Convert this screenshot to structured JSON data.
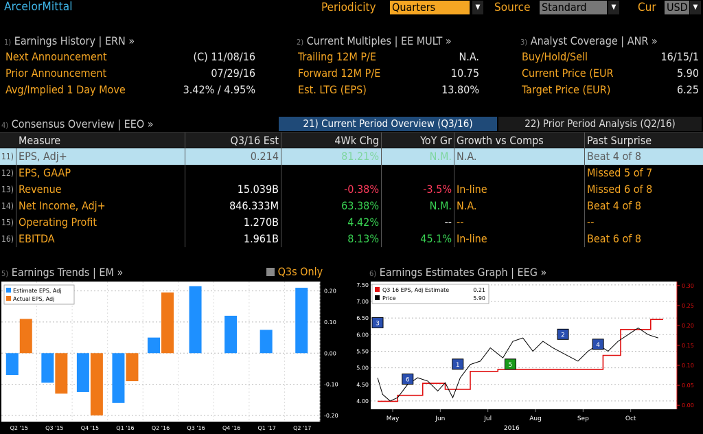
{
  "header": {
    "logo": "ArcelorMittal",
    "periodicity_label": "Periodicity",
    "periodicity_value": "Quarters",
    "source_label": "Source",
    "source_value": "Standard",
    "cur_label": "Cur",
    "cur_value": "USD"
  },
  "sections": {
    "ern": {
      "num": "1)",
      "title": "Earnings History | ERN »",
      "rows": [
        {
          "label": "Next Announcement",
          "value": "(C)  11/08/16"
        },
        {
          "label": "Prior Announcement",
          "value": "07/29/16"
        },
        {
          "label": "Avg/Implied 1 Day Move",
          "value": "3.42% / 4.95%"
        }
      ]
    },
    "mult": {
      "num": "2)",
      "title": "Current Multiples | EE MULT »",
      "rows": [
        {
          "label": "Trailing 12M P/E",
          "value": "N.A."
        },
        {
          "label": "Forward 12M P/E",
          "value": "10.75"
        },
        {
          "label": "Est. LTG (EPS)",
          "value": "13.80%"
        }
      ]
    },
    "anr": {
      "num": "3)",
      "title": "Analyst Coverage | ANR »",
      "rows": [
        {
          "label": "Buy/Hold/Sell",
          "value": "16/15/1"
        },
        {
          "label": "Current Price (EUR",
          "value": "5.90"
        },
        {
          "label": "Target Price (EUR)",
          "value": "6.25"
        }
      ]
    }
  },
  "consensus": {
    "num": "4)",
    "title": "Consensus Overview | EEO »",
    "tab_current": "21) Current Period Overview (Q3/16)",
    "tab_prior": "22) Prior Period Analysis (Q2/16)",
    "columns": [
      "Measure",
      "Q3/16 Est",
      "4Wk Chg",
      "YoY Gr",
      "Growth vs Comps",
      "Past Surprise"
    ],
    "rows": [
      {
        "num": "11)",
        "measure": "EPS, Adj+",
        "est": "0.214",
        "chg": "81.21%",
        "yoy": "N.M.",
        "comps": "N.A.",
        "surprise": "Beat 4 of 8",
        "chg_sign": "pos",
        "yoy_sign": "pos"
      },
      {
        "num": "12)",
        "measure": "EPS, GAAP",
        "est": "",
        "chg": "",
        "yoy": "",
        "comps": "",
        "surprise": "Missed 5 of 7",
        "chg_sign": "pos",
        "yoy_sign": "pos"
      },
      {
        "num": "13)",
        "measure": "Revenue",
        "est": "15.039B",
        "chg": "-0.38%",
        "yoy": "-3.5%",
        "comps": "In-line",
        "surprise": "Missed 6 of 8",
        "chg_sign": "neg",
        "yoy_sign": "neg"
      },
      {
        "num": "14)",
        "measure": "Net Income, Adj+",
        "est": "846.333M",
        "chg": "63.38%",
        "yoy": "N.M.",
        "comps": "N.A.",
        "surprise": "Beat 4 of 8",
        "chg_sign": "pos",
        "yoy_sign": "pos"
      },
      {
        "num": "15)",
        "measure": "Operating Profit",
        "est": "1.270B",
        "chg": "4.42%",
        "yoy": "--",
        "comps": "--",
        "surprise": "--",
        "chg_sign": "pos",
        "yoy_sign": "white"
      },
      {
        "num": "16)",
        "measure": "EBITDA",
        "est": "1.961B",
        "chg": "8.13%",
        "yoy": "45.1%",
        "comps": "In-line",
        "surprise": "Beat 6 of 8",
        "chg_sign": "pos",
        "yoy_sign": "pos"
      }
    ]
  },
  "trends": {
    "num": "5)",
    "title": "Earnings Trends | EM »",
    "toggle_label": "Q3s Only"
  },
  "graph": {
    "num": "6)",
    "title": "Earnings Estimates Graph | EEG »"
  },
  "chart_data": [
    {
      "type": "bar",
      "categories": [
        "Q2 '15",
        "Q3 '15",
        "Q4 '15",
        "Q1 '16",
        "Q2 '16",
        "Q3 '16",
        "Q4 '16",
        "Q1 '17",
        "Q2 '17"
      ],
      "series": [
        {
          "name": "Estimate EPS, Adj",
          "color": "#1e90ff",
          "values": [
            -0.07,
            -0.095,
            -0.125,
            -0.16,
            0.05,
            0.215,
            0.12,
            0.075,
            0.21
          ]
        },
        {
          "name": "Actual EPS, Adj",
          "color": "#f07818",
          "values": [
            0.11,
            -0.13,
            -0.2,
            -0.09,
            0.195,
            null,
            null,
            null,
            null
          ]
        }
      ],
      "ylim": [
        -0.22,
        0.23
      ],
      "yticks": [
        "0.20",
        "0.10",
        "0.00",
        "-0.10",
        "-0.20"
      ],
      "ytick_values": [
        0.2,
        0.1,
        0.0,
        -0.1,
        -0.2
      ],
      "legend": "top-left"
    },
    {
      "type": "line",
      "x_labels": [
        "May",
        "Jun",
        "Jul",
        "Aug",
        "Sep",
        "Oct"
      ],
      "x_year": "2016",
      "left_axis": {
        "ticks": [
          "7.50",
          "7.00",
          "6.50",
          "6.00",
          "5.50",
          "5.00",
          "4.50",
          "4.00"
        ],
        "values": [
          7.5,
          7.0,
          6.5,
          6.0,
          5.5,
          5.0,
          4.5,
          4.0
        ],
        "ylim": [
          3.75,
          7.6
        ]
      },
      "right_axis": {
        "ticks": [
          "0.30",
          "0.25",
          "0.20",
          "0.15",
          "0.10",
          "0.05",
          "0.00"
        ],
        "values": [
          0.3,
          0.25,
          0.2,
          0.15,
          0.1,
          0.05,
          0.0
        ],
        "ylim": [
          -0.01,
          0.31
        ]
      },
      "series": [
        {
          "name": "Q3 16 EPS, Adj Estimate",
          "legend_value": "0.21",
          "color": "#e01010",
          "axis": "right",
          "points": [
            [
              0,
              0.01
            ],
            [
              0.08,
              0.01
            ],
            [
              0.08,
              0.025
            ],
            [
              0.18,
              0.025
            ],
            [
              0.18,
              0.055
            ],
            [
              0.27,
              0.055
            ],
            [
              0.27,
              0.04
            ],
            [
              0.37,
              0.04
            ],
            [
              0.37,
              0.085
            ],
            [
              0.48,
              0.085
            ],
            [
              0.48,
              0.09
            ],
            [
              0.72,
              0.09
            ],
            [
              0.72,
              0.09
            ],
            [
              0.9,
              0.09
            ],
            [
              0.9,
              0.125
            ],
            [
              0.97,
              0.125
            ],
            [
              0.97,
              0.19
            ],
            [
              1.09,
              0.19
            ],
            [
              1.09,
              0.215
            ],
            [
              1.14,
              0.215
            ]
          ]
        },
        {
          "name": "Price",
          "legend_value": "5.90",
          "color": "#000000",
          "axis": "left",
          "points": [
            [
              0,
              4.7
            ],
            [
              0.02,
              4.2
            ],
            [
              0.05,
              4.0
            ],
            [
              0.08,
              4.1
            ],
            [
              0.12,
              4.5
            ],
            [
              0.16,
              4.7
            ],
            [
              0.2,
              4.6
            ],
            [
              0.24,
              4.3
            ],
            [
              0.27,
              4.55
            ],
            [
              0.3,
              4.1
            ],
            [
              0.33,
              4.7
            ],
            [
              0.37,
              5.1
            ],
            [
              0.41,
              5.2
            ],
            [
              0.45,
              5.6
            ],
            [
              0.5,
              5.3
            ],
            [
              0.54,
              5.8
            ],
            [
              0.58,
              5.9
            ],
            [
              0.62,
              5.5
            ],
            [
              0.66,
              5.8
            ],
            [
              0.7,
              5.6
            ],
            [
              0.75,
              5.4
            ],
            [
              0.8,
              5.2
            ],
            [
              0.84,
              5.5
            ],
            [
              0.88,
              5.7
            ],
            [
              0.92,
              5.5
            ],
            [
              0.96,
              5.8
            ],
            [
              1.0,
              6.0
            ],
            [
              1.04,
              6.2
            ],
            [
              1.08,
              6.0
            ],
            [
              1.12,
              5.9
            ]
          ]
        }
      ],
      "markers": [
        {
          "label": "3",
          "x": 0.0,
          "y": 6.35,
          "color": "#2a4fb0"
        },
        {
          "label": "6",
          "x": 0.12,
          "y": 4.65,
          "color": "#2a4fb0"
        },
        {
          "label": "1",
          "x": 0.32,
          "y": 5.1,
          "color": "#2a4fb0"
        },
        {
          "label": "5",
          "x": 0.53,
          "y": 5.1,
          "color": "#1a9a1a"
        },
        {
          "label": "2",
          "x": 0.74,
          "y": 6.0,
          "color": "#2a4fb0"
        },
        {
          "label": "4",
          "x": 0.88,
          "y": 5.7,
          "color": "#2a4fb0"
        }
      ]
    }
  ]
}
